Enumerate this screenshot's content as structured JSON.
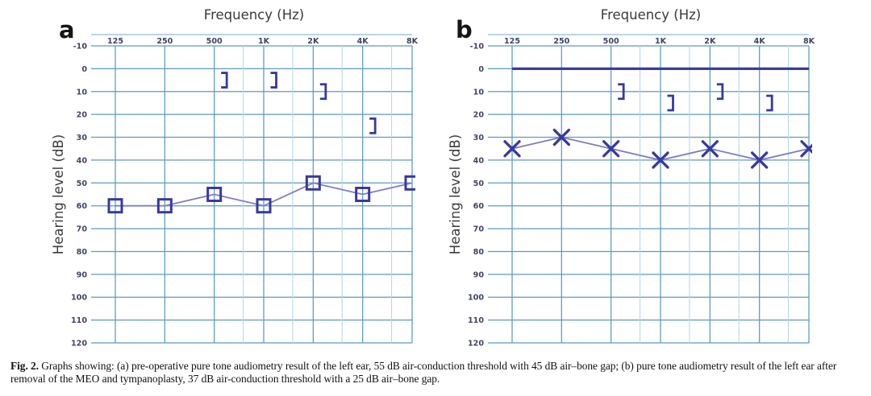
{
  "figure": {
    "caption_prefix": "Fig. 2.",
    "caption_text": "Graphs showing: (a) pre-operative pure tone audiometry result of the left ear, 55 dB air-conduction threshold with 45 dB air–bone gap; (b) pure tone audiometry result of the left ear after removal of the MEO and tympanoplasty, 37 dB air-conduction threshold with a 25 dB air–bone gap."
  },
  "colors": {
    "grid_major": "#5b9ac3",
    "grid_minor": "#b9d8e9",
    "grid_border": "#8fbcd8",
    "symbol": "#38399e",
    "connector": "#7b7dcb",
    "zero_line": "#3c3ca2",
    "tick_text": "#3f4463",
    "title_text": "#3a3a3a",
    "panel_text": "#161616"
  },
  "chart_data": [
    {
      "type": "line",
      "panel_label": "a",
      "title": "Frequency (Hz)",
      "ylabel": "Hearing level (dB)",
      "xscale": "octave",
      "x_tick_labels": [
        "125",
        "250",
        "500",
        "1K",
        "2K",
        "4K",
        "8K"
      ],
      "y_ticks": [
        -10,
        0,
        10,
        20,
        30,
        40,
        50,
        60,
        70,
        80,
        90,
        100,
        110,
        120
      ],
      "ylim": [
        -10,
        120
      ],
      "y_inverted": true,
      "grid": true,
      "legend": "none",
      "zero_line": false,
      "series": [
        {
          "name": "air-conduction left ear (square symbols)",
          "marker": "square",
          "connected": true,
          "x": [
            "125",
            "250",
            "500",
            "1K",
            "2K",
            "4K",
            "8K"
          ],
          "values": [
            60,
            60,
            55,
            60,
            50,
            55,
            50
          ]
        },
        {
          "name": "bone-conduction left ear masked (] symbols)",
          "marker": "bracket",
          "connected": false,
          "x": [
            "500",
            "1K",
            "2K",
            "4K"
          ],
          "values": [
            5,
            5,
            10,
            25
          ]
        }
      ]
    },
    {
      "type": "line",
      "panel_label": "b",
      "title": "Frequency (Hz)",
      "ylabel": "Hearing level (dB)",
      "xscale": "octave",
      "x_tick_labels": [
        "125",
        "250",
        "500",
        "1K",
        "2K",
        "4K",
        "8K"
      ],
      "y_ticks": [
        -10,
        0,
        10,
        20,
        30,
        40,
        50,
        60,
        70,
        80,
        90,
        100,
        110,
        120
      ],
      "ylim": [
        -10,
        120
      ],
      "y_inverted": true,
      "grid": true,
      "legend": "none",
      "zero_line": true,
      "zero_line_db": 0,
      "series": [
        {
          "name": "air-conduction left ear (X symbols)",
          "marker": "x",
          "connected": true,
          "x": [
            "125",
            "250",
            "500",
            "1K",
            "2K",
            "4K",
            "8K"
          ],
          "values": [
            35,
            30,
            35,
            40,
            35,
            40,
            35
          ]
        },
        {
          "name": "bone-conduction left ear masked (] symbols)",
          "marker": "bracket",
          "connected": false,
          "x": [
            "500",
            "1K",
            "2K",
            "4K"
          ],
          "values": [
            10,
            15,
            10,
            15
          ]
        }
      ]
    }
  ]
}
